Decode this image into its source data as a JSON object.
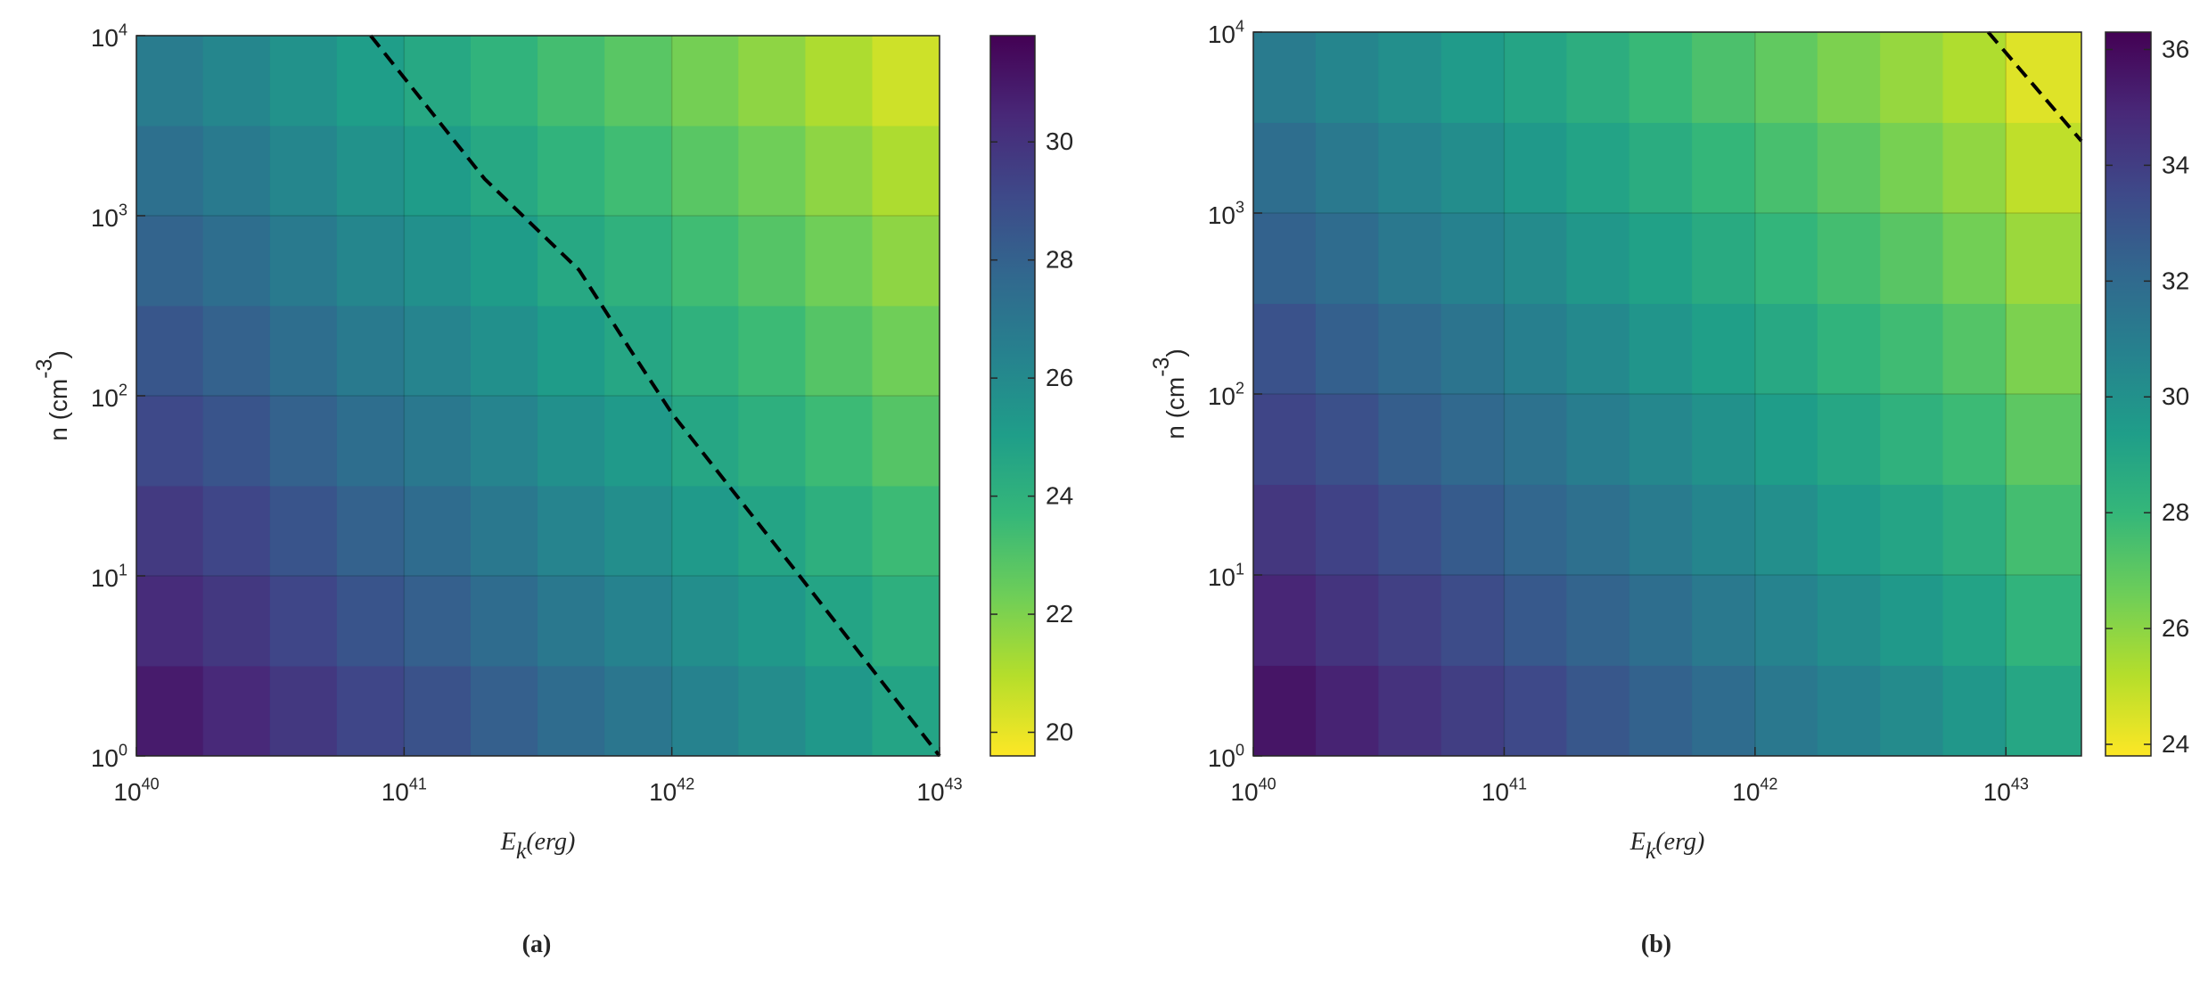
{
  "chart_data": [
    {
      "type": "contour",
      "caption": "(a)",
      "xlabel": "E_k(erg)",
      "ylabel": "n (cm^-3)",
      "xscale": "log",
      "yscale": "log",
      "grid": true,
      "xlim": [
        1e+40,
        1e+43
      ],
      "ylim": [
        1,
        10000
      ],
      "xticks": [
        {
          "value": 1e+40,
          "label": "10^40"
        },
        {
          "value": 1e+41,
          "label": "10^41"
        },
        {
          "value": 1e+42,
          "label": "10^42"
        },
        {
          "value": 1e+43,
          "label": "10^43"
        }
      ],
      "yticks": [
        {
          "value": 1,
          "label": "10^0"
        },
        {
          "value": 10,
          "label": "10^1"
        },
        {
          "value": 100,
          "label": "10^2"
        },
        {
          "value": 1000,
          "label": "10^3"
        },
        {
          "value": 10000,
          "label": "10^4"
        }
      ],
      "x_edges": [
        1e+40,
        1.778e+40,
        3.162e+40,
        5.623e+40,
        1e+41,
        1.778e+41,
        3.162e+41,
        5.623e+41,
        1e+42,
        1.778e+42,
        3.162e+42,
        5.623e+42,
        1e+43
      ],
      "y_edges": [
        1,
        3.162,
        10,
        31.62,
        100,
        316.2,
        1000,
        3162,
        10000
      ],
      "z": [
        [
          30.9,
          30.4,
          29.8,
          29.2,
          28.7,
          28.1,
          27.5,
          27.0,
          26.4,
          25.9,
          25.3,
          24.7
        ],
        [
          30.3,
          29.8,
          29.2,
          28.6,
          28.1,
          27.5,
          26.9,
          26.4,
          25.8,
          25.3,
          24.7,
          24.1
        ],
        [
          29.7,
          29.2,
          28.6,
          28.0,
          27.5,
          26.9,
          26.3,
          25.8,
          25.2,
          24.7,
          24.1,
          23.5
        ],
        [
          29.1,
          28.6,
          28.0,
          27.4,
          26.9,
          26.3,
          25.7,
          25.2,
          24.6,
          24.1,
          23.5,
          22.9
        ],
        [
          28.5,
          28.0,
          27.4,
          26.8,
          26.3,
          25.7,
          25.1,
          24.6,
          24.0,
          23.5,
          22.9,
          22.3
        ],
        [
          27.9,
          27.4,
          26.8,
          26.2,
          25.7,
          25.1,
          24.5,
          24.0,
          23.4,
          22.9,
          22.3,
          21.7
        ],
        [
          27.3,
          26.8,
          26.2,
          25.6,
          25.1,
          24.5,
          23.9,
          23.4,
          22.8,
          22.3,
          21.7,
          21.1
        ],
        [
          26.7,
          26.2,
          25.6,
          25.0,
          24.5,
          23.9,
          23.3,
          22.8,
          22.2,
          21.7,
          21.1,
          20.5
        ]
      ],
      "clim": [
        19.6,
        31.8
      ],
      "cticks": [
        20,
        22,
        24,
        26,
        28,
        30
      ],
      "colormap": [
        "#fde725",
        "#b5de2b",
        "#6ece58",
        "#35b779",
        "#1f9e89",
        "#26828e",
        "#31688e",
        "#3e4989",
        "#482878",
        "#440154"
      ],
      "line": {
        "color": "#000000",
        "x": [
          7.5e+40,
          2e+41,
          4.5e+41,
          7e+41,
          1e+42,
          3e+42,
          1e+43
        ],
        "y": [
          10000,
          1600,
          500,
          180,
          80,
          10,
          1
        ]
      }
    },
    {
      "type": "contour",
      "caption": "(b)",
      "xlabel": "E_k(erg)",
      "ylabel": "n (cm^-3)",
      "xscale": "log",
      "yscale": "log",
      "grid": true,
      "xlim": [
        1e+40,
        2e+43
      ],
      "ylim": [
        1,
        10000
      ],
      "xticks": [
        {
          "value": 1e+40,
          "label": "10^40"
        },
        {
          "value": 1e+41,
          "label": "10^41"
        },
        {
          "value": 1e+42,
          "label": "10^42"
        },
        {
          "value": 1e+43,
          "label": "10^43"
        }
      ],
      "yticks": [
        {
          "value": 1,
          "label": "10^0"
        },
        {
          "value": 10,
          "label": "10^1"
        },
        {
          "value": 100,
          "label": "10^2"
        },
        {
          "value": 1000,
          "label": "10^3"
        },
        {
          "value": 10000,
          "label": "10^4"
        }
      ],
      "x_edges": [
        1e+40,
        1.778e+40,
        3.162e+40,
        5.623e+40,
        1e+41,
        1.778e+41,
        3.162e+41,
        5.623e+41,
        1e+42,
        1.778e+42,
        3.162e+42,
        5.623e+42,
        1e+43,
        2e+43
      ],
      "y_edges": [
        1,
        3.162,
        10,
        31.62,
        100,
        316.2,
        1000,
        3162,
        10000
      ],
      "z": [
        [
          35.6,
          35.1,
          34.5,
          34.0,
          33.5,
          32.9,
          32.4,
          31.9,
          31.3,
          30.8,
          30.3,
          29.7,
          28.9
        ],
        [
          35.0,
          34.4,
          33.9,
          33.4,
          32.8,
          32.3,
          31.8,
          31.2,
          30.7,
          30.2,
          29.6,
          29.1,
          28.2
        ],
        [
          34.3,
          33.8,
          33.3,
          32.7,
          32.2,
          31.7,
          31.1,
          30.6,
          30.1,
          29.5,
          29.0,
          28.5,
          27.6
        ],
        [
          33.7,
          33.2,
          32.6,
          32.1,
          31.6,
          31.0,
          30.5,
          30.0,
          29.4,
          28.9,
          28.3,
          27.8,
          27.0
        ],
        [
          33.1,
          32.5,
          32.0,
          31.5,
          30.9,
          30.4,
          29.8,
          29.3,
          28.8,
          28.2,
          27.7,
          27.2,
          26.3
        ],
        [
          32.4,
          31.9,
          31.3,
          30.8,
          30.3,
          29.7,
          29.2,
          28.7,
          28.1,
          27.6,
          27.1,
          26.5,
          25.7
        ],
        [
          31.8,
          31.2,
          30.7,
          30.2,
          29.6,
          29.1,
          28.6,
          28.0,
          27.5,
          27.0,
          26.4,
          25.9,
          25.0
        ],
        [
          31.1,
          30.6,
          30.1,
          29.5,
          29.0,
          28.5,
          27.9,
          27.4,
          26.9,
          26.3,
          25.8,
          25.3,
          24.4
        ]
      ],
      "clim": [
        23.8,
        36.3
      ],
      "cticks": [
        24,
        26,
        28,
        30,
        32,
        34,
        36
      ],
      "colormap": [
        "#fde725",
        "#b5de2b",
        "#6ece58",
        "#35b779",
        "#1f9e89",
        "#26828e",
        "#31688e",
        "#3e4989",
        "#482878",
        "#440154"
      ],
      "line": {
        "color": "#000000",
        "x": [
          8.5e+42,
          2e+43
        ],
        "y": [
          10000,
          2500
        ]
      }
    }
  ]
}
